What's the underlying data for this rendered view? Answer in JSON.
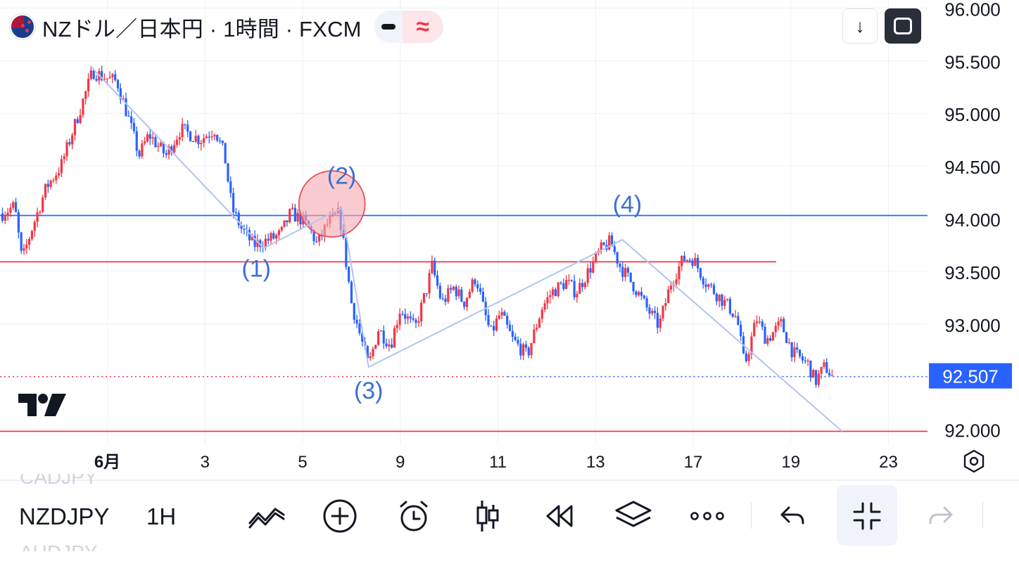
{
  "header": {
    "symbol_title": "NZドル／日本円 · 1時間 · FXCM",
    "market_status_icon": "dash-icon",
    "delay_icon": "approx-wave-icon",
    "download_icon": "arrow-down-icon",
    "fullscreen_icon": "fullscreen-icon"
  },
  "colors": {
    "up": "#f23645",
    "down": "#2962ff",
    "price_badge": "#2962ff",
    "support_line": "#f23645",
    "resistance_line": "#2962ff",
    "wave_line": "#b2c4f0",
    "wave_label": "#3b6fd1",
    "circle_fill": "#f6a9ae"
  },
  "chart_data": {
    "type": "candlestick",
    "symbol": "NZDJPY",
    "interval": "1H",
    "ylim": [
      91.95,
      96.05
    ],
    "y_ticks": [
      "92.000",
      "92.500",
      "93.000",
      "93.500",
      "94.000",
      "94.500",
      "95.000",
      "95.500",
      "96.000"
    ],
    "x_ticks": [
      {
        "label": "6月",
        "x": 0
      },
      {
        "label": "3",
        "x": 2
      },
      {
        "label": "5",
        "x": 4
      },
      {
        "label": "9",
        "x": 6
      },
      {
        "label": "11",
        "x": 8
      },
      {
        "label": "13",
        "x": 10
      },
      {
        "label": "17",
        "x": 12
      },
      {
        "label": "19",
        "x": 14
      },
      {
        "label": "23",
        "x": 16
      }
    ],
    "xlim": [
      -2.2,
      16.8
    ],
    "last_price": "92.507",
    "price_path": [
      [
        -2.15,
        94.05
      ],
      [
        -1.9,
        94.12
      ],
      [
        -1.75,
        93.6
      ],
      [
        -1.55,
        93.9
      ],
      [
        -1.25,
        94.3
      ],
      [
        -0.95,
        94.5
      ],
      [
        -0.55,
        95.05
      ],
      [
        -0.3,
        95.4
      ],
      [
        -0.1,
        95.35
      ],
      [
        0.2,
        95.3
      ],
      [
        0.4,
        95.0
      ],
      [
        0.65,
        94.6
      ],
      [
        0.85,
        94.8
      ],
      [
        1.2,
        94.6
      ],
      [
        1.5,
        94.85
      ],
      [
        1.9,
        94.75
      ],
      [
        2.2,
        94.85
      ],
      [
        2.4,
        94.6
      ],
      [
        2.55,
        94.1
      ],
      [
        2.75,
        93.9
      ],
      [
        3.0,
        93.75
      ],
      [
        3.3,
        93.8
      ],
      [
        3.55,
        93.85
      ],
      [
        3.75,
        94.05
      ],
      [
        3.95,
        94.0
      ],
      [
        4.15,
        93.9
      ],
      [
        4.3,
        93.75
      ],
      [
        4.5,
        93.95
      ],
      [
        4.75,
        94.05
      ],
      [
        4.9,
        93.55
      ],
      [
        5.0,
        93.2
      ],
      [
        5.2,
        92.85
      ],
      [
        5.35,
        92.6
      ],
      [
        5.55,
        92.95
      ],
      [
        5.8,
        92.8
      ],
      [
        6.0,
        93.15
      ],
      [
        6.3,
        92.95
      ],
      [
        6.55,
        93.35
      ],
      [
        6.65,
        93.55
      ],
      [
        6.85,
        93.2
      ],
      [
        7.1,
        93.35
      ],
      [
        7.3,
        93.2
      ],
      [
        7.55,
        93.45
      ],
      [
        7.7,
        93.15
      ],
      [
        7.85,
        92.9
      ],
      [
        8.05,
        93.1
      ],
      [
        8.3,
        92.85
      ],
      [
        8.6,
        92.7
      ],
      [
        8.9,
        93.15
      ],
      [
        9.1,
        93.3
      ],
      [
        9.4,
        93.4
      ],
      [
        9.6,
        93.3
      ],
      [
        9.85,
        93.5
      ],
      [
        10.1,
        93.7
      ],
      [
        10.3,
        93.78
      ],
      [
        10.5,
        93.55
      ],
      [
        10.8,
        93.35
      ],
      [
        11.05,
        93.15
      ],
      [
        11.3,
        92.98
      ],
      [
        11.55,
        93.4
      ],
      [
        11.8,
        93.62
      ],
      [
        12.0,
        93.62
      ],
      [
        12.25,
        93.4
      ],
      [
        12.55,
        93.25
      ],
      [
        12.75,
        93.15
      ],
      [
        12.9,
        93.05
      ],
      [
        13.05,
        92.6
      ],
      [
        13.3,
        93.05
      ],
      [
        13.5,
        92.85
      ],
      [
        13.8,
        93.0
      ],
      [
        14.05,
        92.72
      ],
      [
        14.35,
        92.62
      ],
      [
        14.5,
        92.45
      ],
      [
        14.7,
        92.6
      ],
      [
        14.85,
        92.5
      ]
    ],
    "horizontal_lines": [
      {
        "price": 94.03,
        "color": "blue",
        "style": "solid",
        "from_x": -2.2,
        "to_x": 16.8
      },
      {
        "price": 93.59,
        "color": "red",
        "style": "solid",
        "from_x": -2.2,
        "to_x": 13.7
      },
      {
        "price": 92.5,
        "color": "red",
        "style": "dotted",
        "from_x": -2.2,
        "to_x": 8.2
      },
      {
        "price": 92.5,
        "color": "blue",
        "style": "dotted",
        "from_x": 8.2,
        "to_x": 16.8
      },
      {
        "price": 91.98,
        "color": "red",
        "style": "solid",
        "from_x": -2.2,
        "to_x": 16.8
      }
    ],
    "wave_path": [
      [
        -0.35,
        95.45
      ],
      [
        3.2,
        93.72
      ],
      [
        4.8,
        94.1
      ],
      [
        5.35,
        92.59
      ],
      [
        10.55,
        93.8
      ],
      [
        15.05,
        91.98
      ]
    ],
    "wave_labels": [
      {
        "text": "(1)",
        "x": 3.05,
        "price": 93.45
      },
      {
        "text": "(2)",
        "x": 4.8,
        "price": 94.33
      },
      {
        "text": "(3)",
        "x": 5.35,
        "price": 92.29
      },
      {
        "text": "(4)",
        "x": 10.65,
        "price": 94.06
      }
    ],
    "highlight_circle": {
      "x": 4.6,
      "price": 94.14
    }
  },
  "toolbar": {
    "symbol": "NZDJPY",
    "interval": "1H",
    "ghost_above": "CADJPY",
    "ghost_below": "AUDJPY",
    "icons": [
      "indicators-icon",
      "add-icon",
      "alert-clock-icon",
      "candles-icon",
      "replay-icon",
      "layers-icon",
      "more-icon",
      "undo-icon",
      "collapse-icon",
      "redo-icon"
    ]
  }
}
